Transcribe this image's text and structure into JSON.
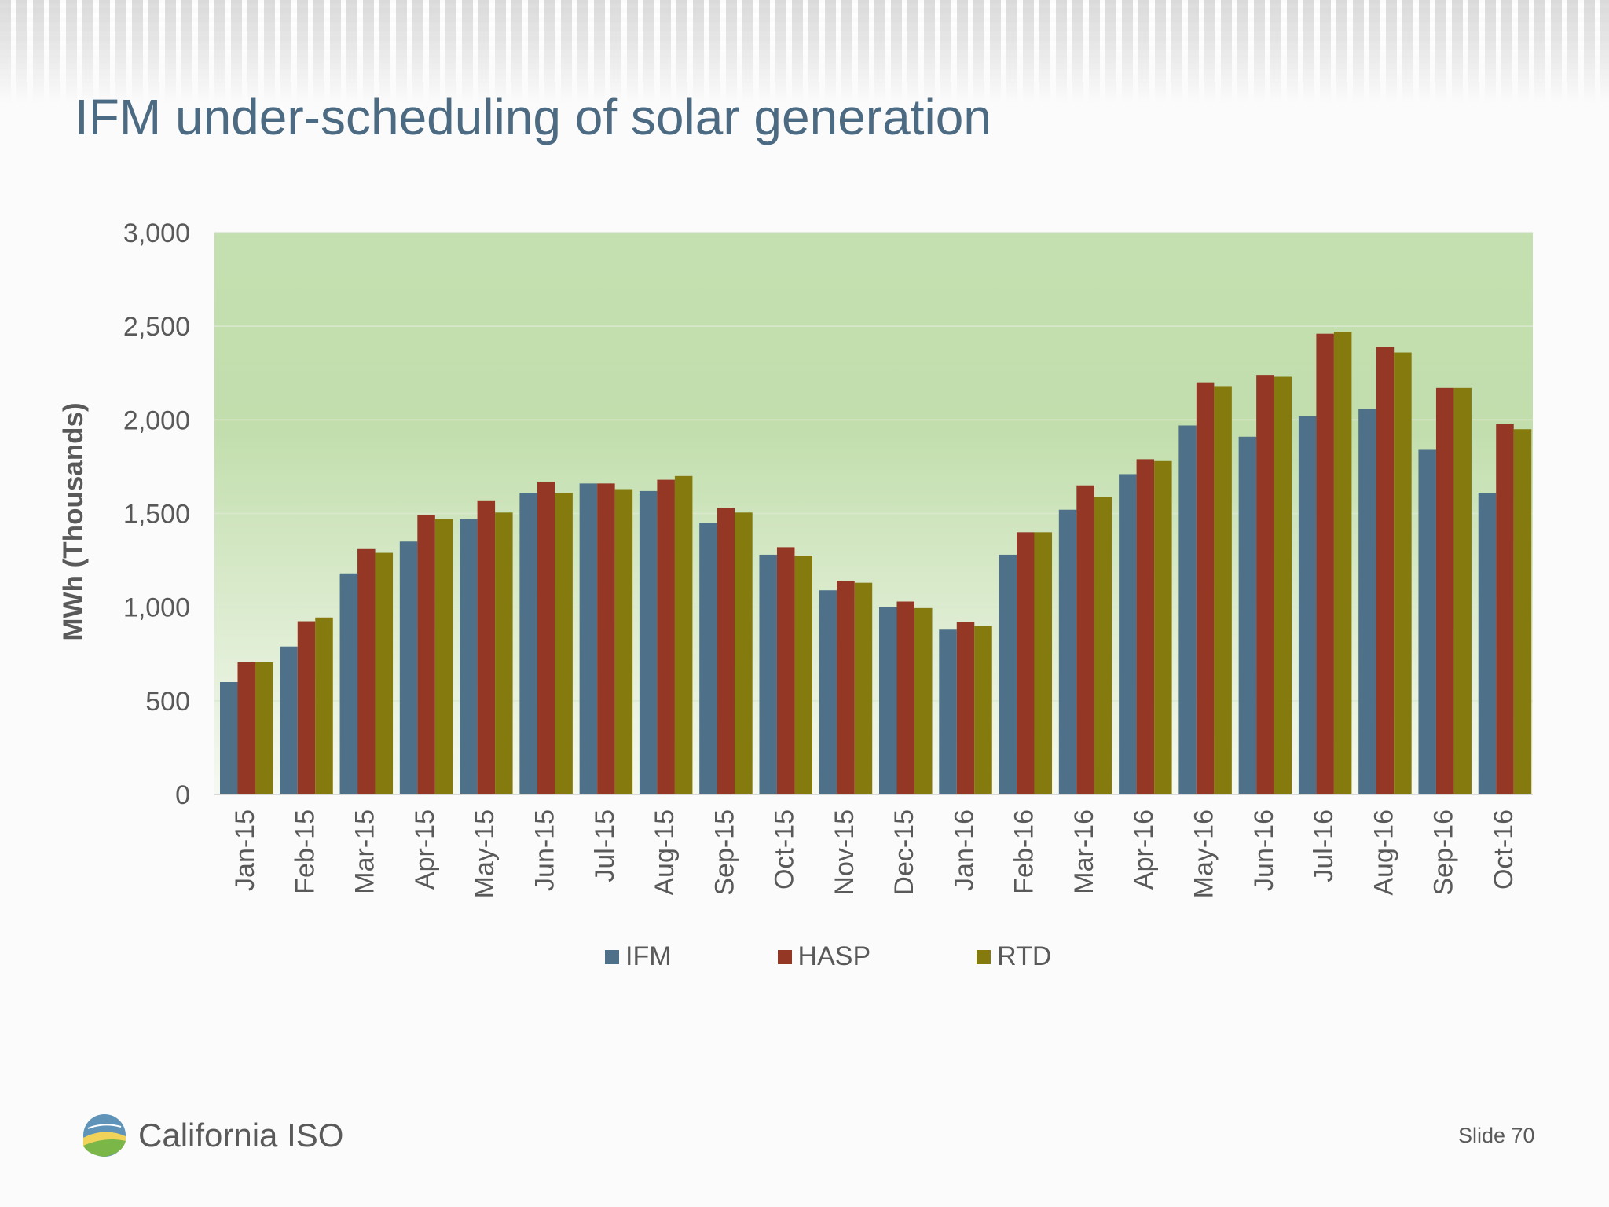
{
  "slide": {
    "title": "IFM under-scheduling of solar generation",
    "logo_text": "California ISO",
    "slide_number": "Slide 70"
  },
  "colors": {
    "IFM": "#4e7189",
    "HASP": "#943725",
    "RTD": "#857a0d",
    "plot_bg_top": "#c5e0b0",
    "plot_bg_bottom": "#f6f9f1",
    "title": "#4c6b82"
  },
  "chart_data": {
    "type": "bar",
    "ylabel": "MWh (Thousands)",
    "ylim": [
      0,
      3000
    ],
    "yticks": [
      "0",
      "500",
      "1,000",
      "1,500",
      "2,000",
      "2,500",
      "3,000"
    ],
    "grid": "horizontal",
    "legend_position": "bottom",
    "categories": [
      "Jan-15",
      "Feb-15",
      "Mar-15",
      "Apr-15",
      "May-15",
      "Jun-15",
      "Jul-15",
      "Aug-15",
      "Sep-15",
      "Oct-15",
      "Nov-15",
      "Dec-15",
      "Jan-16",
      "Feb-16",
      "Mar-16",
      "Apr-16",
      "May-16",
      "Jun-16",
      "Jul-16",
      "Aug-16",
      "Sep-16",
      "Oct-16"
    ],
    "series": [
      {
        "name": "IFM",
        "values": [
          600,
          790,
          1180,
          1350,
          1470,
          1610,
          1660,
          1620,
          1450,
          1280,
          1090,
          1000,
          880,
          1280,
          1520,
          1710,
          1970,
          1910,
          2020,
          2060,
          1840,
          1610
        ]
      },
      {
        "name": "HASP",
        "values": [
          705,
          925,
          1310,
          1490,
          1570,
          1670,
          1660,
          1680,
          1530,
          1320,
          1140,
          1030,
          920,
          1400,
          1650,
          1790,
          2200,
          2240,
          2460,
          2390,
          2170,
          1980
        ]
      },
      {
        "name": "RTD",
        "values": [
          705,
          945,
          1290,
          1470,
          1505,
          1610,
          1630,
          1700,
          1505,
          1275,
          1130,
          995,
          900,
          1400,
          1590,
          1780,
          2180,
          2230,
          2470,
          2360,
          2170,
          1950
        ]
      }
    ]
  }
}
